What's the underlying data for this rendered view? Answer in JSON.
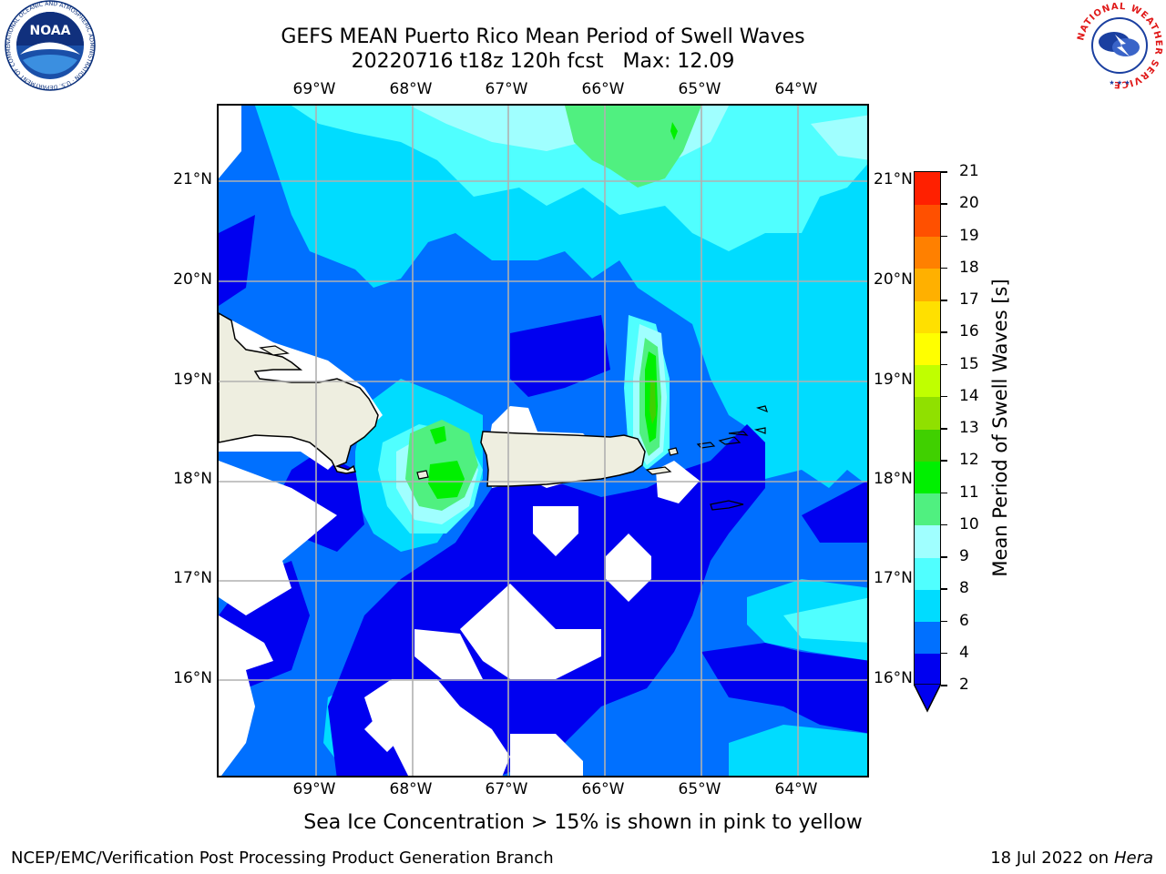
{
  "title_line1": "GEFS MEAN Puerto Rico Mean Period of Swell Waves",
  "title_line2": "20220716 t18z 120h fcst   Max: 12.09",
  "lon_ticks": [
    "69°W",
    "68°W",
    "67°W",
    "66°W",
    "65°W",
    "64°W"
  ],
  "lat_ticks": [
    "21°N",
    "20°N",
    "19°N",
    "18°N",
    "17°N",
    "16°N"
  ],
  "colorbar": {
    "label": "Mean Period of Swell Waves [s]",
    "ticks": [
      "2",
      "4",
      "6",
      "8",
      "9",
      "10",
      "11",
      "12",
      "13",
      "14",
      "15",
      "16",
      "17",
      "18",
      "19",
      "20",
      "21"
    ],
    "colors": [
      "#0000f0",
      "#0070ff",
      "#00dcff",
      "#50ffff",
      "#a0ffff",
      "#50f080",
      "#00f000",
      "#40d000",
      "#90e000",
      "#c0ff00",
      "#ffff00",
      "#ffe000",
      "#ffb000",
      "#ff8000",
      "#ff5000",
      "#ff2000"
    ],
    "extend_color": "#0000f0"
  },
  "footnote": "Sea Ice Concentration > 15% is shown in pink to yellow",
  "footer_left": "NCEP/EMC/Verification Post Processing Product Generation Branch",
  "footer_right_date": "18 Jul 2022 on ",
  "footer_right_host": "Hera",
  "logos": {
    "noaa_text": "NOAA",
    "noaa_ring_text": "NATIONAL OCEANIC AND ATMOSPHERIC ADMINISTRATION · U.S. DEPARTMENT OF COMMERCE",
    "nws_ring_text": "NATIONAL WEATHER SERVICE"
  }
}
